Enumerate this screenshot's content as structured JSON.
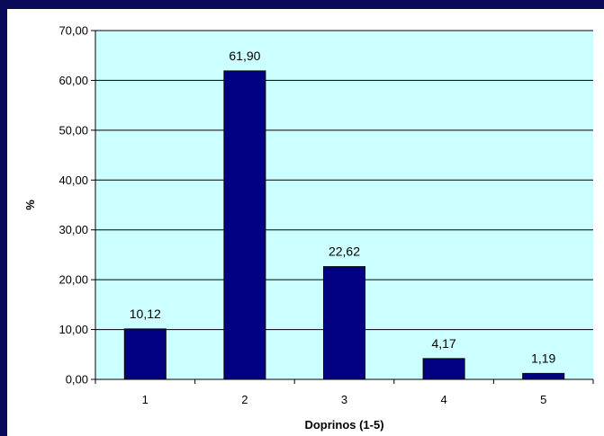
{
  "chart_data": {
    "type": "bar",
    "title": "",
    "xlabel": "Doprinos (1-5)",
    "ylabel": "%",
    "categories": [
      "1",
      "2",
      "3",
      "4",
      "5"
    ],
    "values": [
      10.12,
      61.9,
      22.62,
      4.17,
      1.19
    ],
    "value_labels": [
      "10,12",
      "61,90",
      "22,62",
      "4,17",
      "1,19"
    ],
    "ylim": [
      0,
      70
    ],
    "yticks": [
      0,
      10,
      20,
      30,
      40,
      50,
      60,
      70
    ],
    "ytick_labels": [
      "0,00",
      "10,00",
      "20,00",
      "30,00",
      "40,00",
      "50,00",
      "60,00",
      "70,00"
    ],
    "grid": true,
    "legend": "none",
    "colors": {
      "bar": "#000080",
      "plot_background": "#ccffff",
      "gridline": "#000000",
      "frame_background": "#0a0a5a"
    }
  }
}
